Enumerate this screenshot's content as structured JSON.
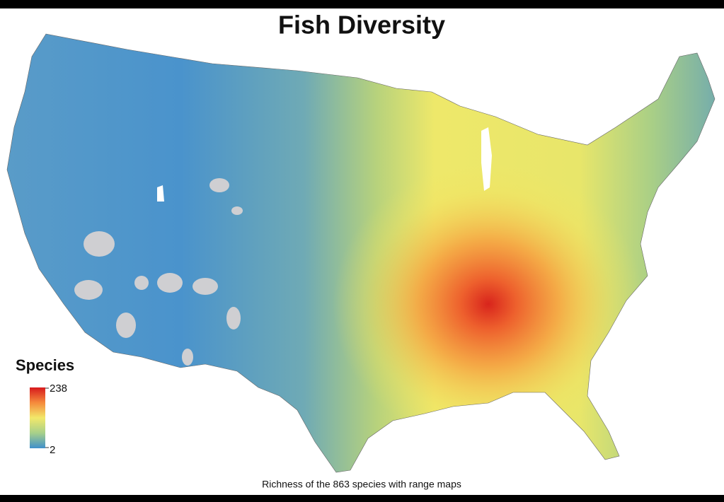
{
  "title": "Fish Diversity",
  "legend": {
    "title": "Species",
    "max": 238,
    "min": 2
  },
  "caption": "Richness of the 863 species with range maps"
}
